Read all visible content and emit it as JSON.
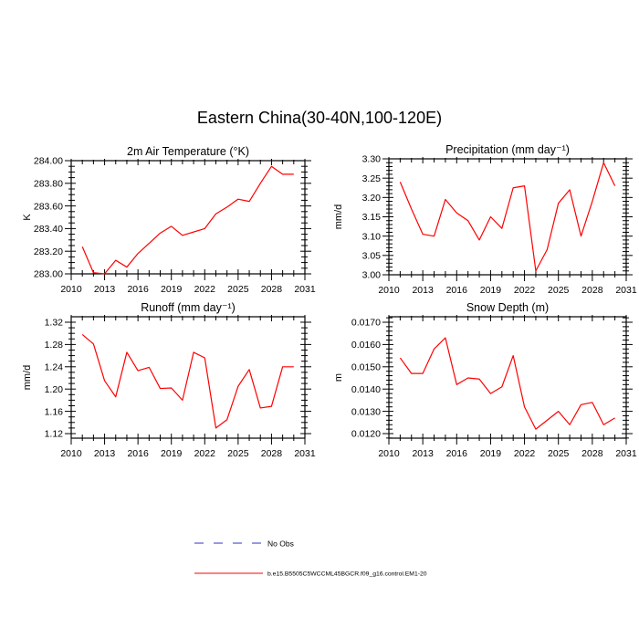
{
  "figure": {
    "title": "Eastern China(30-40N,100-120E)"
  },
  "legend": {
    "entries": [
      {
        "label": "No Obs",
        "color": "#5a5ad8",
        "style": "dashed"
      },
      {
        "label": "b.e15.B5505C5WCCML45BGCR.f09_g16.control.EM1-20",
        "color": "#ff0000",
        "style": "solid"
      }
    ]
  },
  "chart_data": [
    {
      "type": "line",
      "title": "2m Air Temperature (°K)",
      "ylabel": "K",
      "x": [
        2011,
        2012,
        2013,
        2014,
        2015,
        2016,
        2017,
        2018,
        2019,
        2020,
        2021,
        2022,
        2023,
        2024,
        2025,
        2026,
        2027,
        2028,
        2029,
        2030
      ],
      "values": [
        283.24,
        283.01,
        283.0,
        283.12,
        283.06,
        283.18,
        283.27,
        283.36,
        283.42,
        283.34,
        283.37,
        283.4,
        283.53,
        283.59,
        283.66,
        283.64,
        283.8,
        283.95,
        283.88,
        283.88
      ],
      "xlim": [
        2010,
        2031
      ],
      "ylim": [
        283.0,
        284.0
      ],
      "xticks": [
        2010,
        2013,
        2016,
        2019,
        2022,
        2025,
        2028,
        2031
      ],
      "x_minor": 1,
      "yticks": [
        283.0,
        283.2,
        283.4,
        283.6,
        283.8,
        284.0
      ],
      "ytick_labels": [
        "283.00",
        "283.20",
        "283.40",
        "283.60",
        "283.80",
        "284.00"
      ],
      "y_minor": 0.05,
      "line_color": "#ff0000",
      "grid": false
    },
    {
      "type": "line",
      "title": "Precipitation (mm day⁻¹)",
      "ylabel": "mm/d",
      "x": [
        2011,
        2012,
        2013,
        2014,
        2015,
        2016,
        2017,
        2018,
        2019,
        2020,
        2021,
        2022,
        2023,
        2024,
        2025,
        2026,
        2027,
        2028,
        2029,
        2030
      ],
      "values": [
        3.24,
        3.17,
        3.105,
        3.1,
        3.195,
        3.16,
        3.14,
        3.09,
        3.15,
        3.12,
        3.225,
        3.23,
        3.01,
        3.065,
        3.185,
        3.22,
        3.1,
        3.19,
        3.29,
        3.23
      ],
      "xlim": [
        2010,
        2031
      ],
      "ylim": [
        3.0,
        3.3
      ],
      "xticks": [
        2010,
        2013,
        2016,
        2019,
        2022,
        2025,
        2028,
        2031
      ],
      "x_minor": 1,
      "yticks": [
        3.0,
        3.05,
        3.1,
        3.15,
        3.2,
        3.25,
        3.3
      ],
      "ytick_labels": [
        "3.00",
        "3.05",
        "3.10",
        "3.15",
        "3.20",
        "3.25",
        "3.30"
      ],
      "y_minor": 0.01,
      "line_color": "#ff0000",
      "grid": false
    },
    {
      "type": "line",
      "title": "Runoff (mm day⁻¹)",
      "ylabel": "mm/d",
      "x": [
        2011,
        2012,
        2013,
        2014,
        2015,
        2016,
        2017,
        2018,
        2019,
        2020,
        2021,
        2022,
        2023,
        2024,
        2025,
        2026,
        2027,
        2028,
        2029,
        2030
      ],
      "values": [
        1.298,
        1.281,
        1.215,
        1.186,
        1.266,
        1.233,
        1.239,
        1.201,
        1.202,
        1.18,
        1.266,
        1.256,
        1.13,
        1.145,
        1.205,
        1.235,
        1.166,
        1.169,
        1.24,
        1.24
      ],
      "xlim": [
        2010,
        2031
      ],
      "ylim": [
        1.1118,
        1.3298
      ],
      "xticks": [
        2010,
        2013,
        2016,
        2019,
        2022,
        2025,
        2028,
        2031
      ],
      "x_minor": 1,
      "yticks": [
        1.12,
        1.16,
        1.2,
        1.24,
        1.28,
        1.32
      ],
      "ytick_labels": [
        "1.12",
        "1.16",
        "1.20",
        "1.24",
        "1.28",
        "1.32"
      ],
      "y_minor": 0.01,
      "line_color": "#ff0000",
      "grid": false
    },
    {
      "type": "line",
      "title": "Snow Depth (m)",
      "ylabel": "m",
      "x": [
        2011,
        2012,
        2013,
        2014,
        2015,
        2016,
        2017,
        2018,
        2019,
        2020,
        2021,
        2022,
        2023,
        2024,
        2025,
        2026,
        2027,
        2028,
        2029,
        2030
      ],
      "values": [
        0.0154,
        0.0147,
        0.0147,
        0.0158,
        0.0163,
        0.0142,
        0.0145,
        0.01445,
        0.0138,
        0.0141,
        0.0155,
        0.0132,
        0.0122,
        0.0126,
        0.013,
        0.0124,
        0.0133,
        0.0134,
        0.0124,
        0.0127
      ],
      "xlim": [
        2010,
        2031
      ],
      "ylim": [
        0.011795,
        0.017246
      ],
      "xticks": [
        2010,
        2013,
        2016,
        2019,
        2022,
        2025,
        2028,
        2031
      ],
      "x_minor": 1,
      "yticks": [
        0.012,
        0.013,
        0.014,
        0.015,
        0.016,
        0.017
      ],
      "ytick_labels": [
        "0.0120",
        "0.0130",
        "0.0140",
        "0.0150",
        "0.0160",
        "0.0170"
      ],
      "y_minor": 0.0002,
      "line_color": "#ff0000",
      "grid": false
    }
  ]
}
